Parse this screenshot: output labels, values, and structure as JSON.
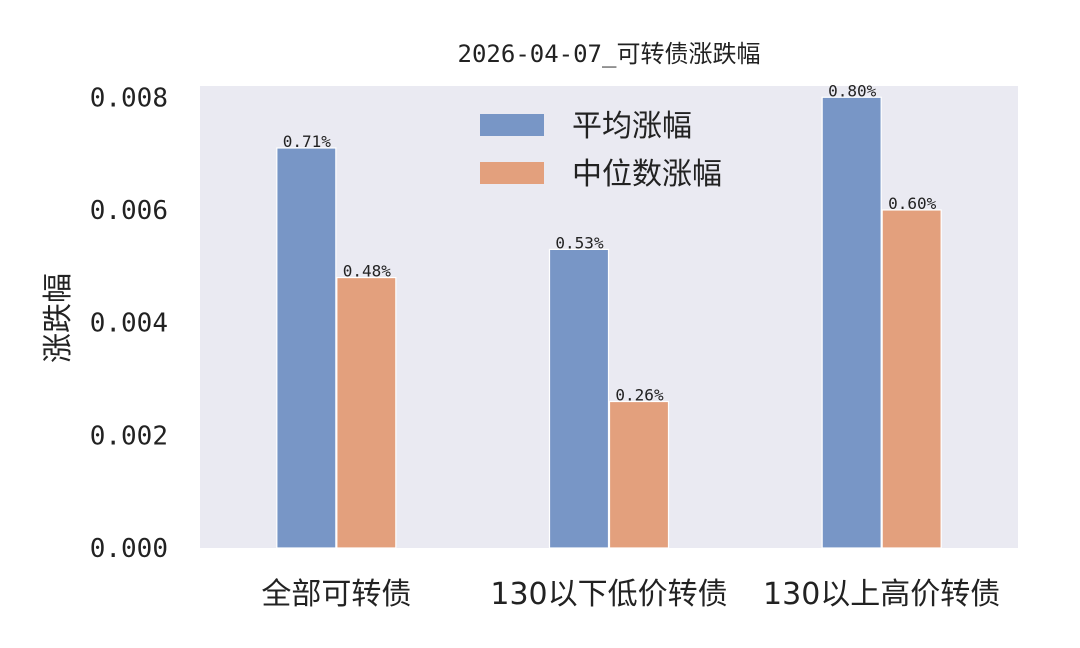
{
  "chart_data": {
    "type": "bar",
    "title": "2026-04-07_可转债涨跌幅",
    "xlabel": "",
    "ylabel": "涨跌幅",
    "categories": [
      "全部可转债",
      "130以下低价转债",
      "130以上高价转债"
    ],
    "series": [
      {
        "name": "平均涨幅",
        "values": [
          0.0071,
          0.0053,
          0.008
        ],
        "labels": [
          "0.71%",
          "0.53%",
          "0.80%"
        ],
        "color": "#7896c6"
      },
      {
        "name": "中位数涨幅",
        "values": [
          0.0048,
          0.0026,
          0.006
        ],
        "labels": [
          "0.48%",
          "0.26%",
          "0.60%"
        ],
        "color": "#e3a07d"
      }
    ],
    "ylim": [
      0,
      0.0082
    ],
    "yticks": [
      0.0,
      0.002,
      0.004,
      0.006,
      0.008
    ],
    "ytick_labels": [
      "0.000",
      "0.002",
      "0.004",
      "0.006",
      "0.008"
    ],
    "grid": false,
    "legend_position": "top-center",
    "plot_background": "#eaeaf2"
  }
}
